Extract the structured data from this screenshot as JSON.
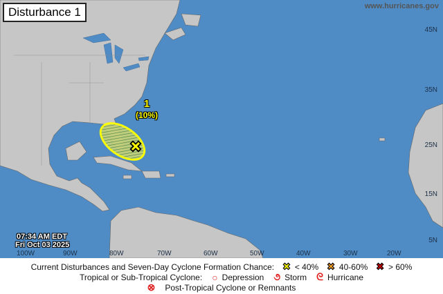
{
  "title": "Disturbance 1",
  "site": "www.hurricanes.gov",
  "timestamp": {
    "time": "07:34 AM EDT",
    "date": "Fri Oct 03 2025"
  },
  "lat_labels": [
    "45N",
    "35N",
    "25N",
    "15N",
    "5N"
  ],
  "lon_labels": [
    "100W",
    "90W",
    "80W",
    "70W",
    "60W",
    "50W",
    "40W",
    "30W",
    "20W"
  ],
  "disturbance": {
    "number": "1",
    "chance": "(10%)",
    "color": "#ffff00"
  },
  "legend": {
    "row1_label": "Current Disturbances and Seven-Day Cyclone Formation Chance:",
    "low": "< 40%",
    "mid": "40-60%",
    "high": "> 60%",
    "low_color": "#ffff00",
    "mid_color": "#f39c26",
    "high_color": "#cc0000",
    "row2_label": "Tropical or Sub-Tropical Cyclone:",
    "depression": "Depression",
    "storm": "Storm",
    "hurricane": "Hurricane",
    "row3_label": "Post-Tropical Cyclone or Remnants"
  },
  "colors": {
    "ocean": "#4f8cc6",
    "land": "#c6c6c6"
  }
}
